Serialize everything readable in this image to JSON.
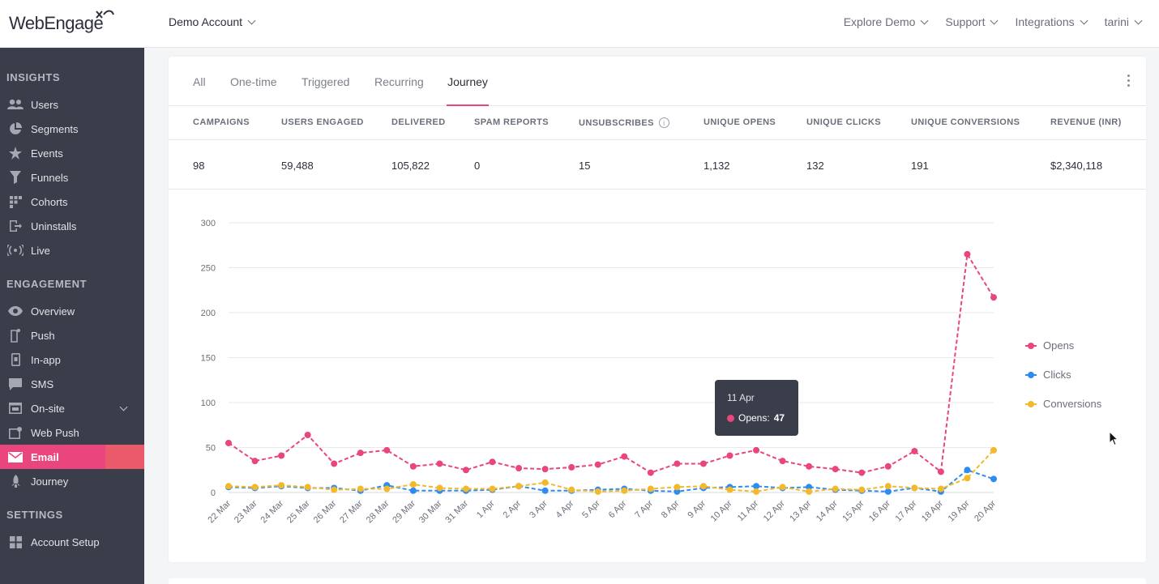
{
  "brand": {
    "logo_text": "WebEngage",
    "accent": "#e8467c"
  },
  "header": {
    "account": "Demo Account",
    "nav": [
      "Explore Demo",
      "Support",
      "Integrations",
      "tarini"
    ]
  },
  "sidebar": {
    "sections": [
      {
        "title": "INSIGHTS",
        "items": [
          {
            "label": "Users",
            "icon": "users-icon"
          },
          {
            "label": "Segments",
            "icon": "pie-icon"
          },
          {
            "label": "Events",
            "icon": "star-icon"
          },
          {
            "label": "Funnels",
            "icon": "funnel-icon"
          },
          {
            "label": "Cohorts",
            "icon": "grid-icon"
          },
          {
            "label": "Uninstalls",
            "icon": "uninstall-icon"
          },
          {
            "label": "Live",
            "icon": "broadcast-icon"
          }
        ]
      },
      {
        "title": "ENGAGEMENT",
        "items": [
          {
            "label": "Overview",
            "icon": "eye-icon"
          },
          {
            "label": "Push",
            "icon": "phone-icon"
          },
          {
            "label": "In-app",
            "icon": "inapp-icon"
          },
          {
            "label": "SMS",
            "icon": "chat-icon"
          },
          {
            "label": "On-site",
            "icon": "window-icon"
          },
          {
            "label": "Web Push",
            "icon": "webpush-icon"
          },
          {
            "label": "Email",
            "icon": "mail-icon"
          },
          {
            "label": "Journey",
            "icon": "rocket-icon"
          }
        ]
      },
      {
        "title": "SETTINGS",
        "items": [
          {
            "label": "Account Setup",
            "icon": "apps-icon"
          }
        ]
      }
    ],
    "active": "Email"
  },
  "tabs": [
    "All",
    "One-time",
    "Triggered",
    "Recurring",
    "Journey"
  ],
  "active_tab": "Journey",
  "stats": {
    "headers": [
      "CAMPAIGNS",
      "USERS ENGAGED",
      "DELIVERED",
      "SPAM REPORTS",
      "UNSUBSCRIBES",
      "UNIQUE OPENS",
      "UNIQUE CLICKS",
      "UNIQUE CONVERSIONS",
      "REVENUE (INR)"
    ],
    "values": [
      "98",
      "59,488",
      "105,822",
      "0",
      "15",
      "1,132",
      "132",
      "191",
      "$2,340,118"
    ]
  },
  "tooltip": {
    "date": "11 Apr",
    "label": "Opens:",
    "value": "47"
  },
  "chart_data": {
    "type": "line",
    "x": [
      "22 Mar",
      "23 Mar",
      "24 Mar",
      "25 Mar",
      "26 Mar",
      "27 Mar",
      "28 Mar",
      "29 Mar",
      "30 Mar",
      "31 Mar",
      "1 Apr",
      "2 Apr",
      "3 Apr",
      "4 Apr",
      "5 Apr",
      "6 Apr",
      "7 Apr",
      "8 Apr",
      "9 Apr",
      "10 Apr",
      "11 Apr",
      "12 Apr",
      "13 Apr",
      "14 Apr",
      "15 Apr",
      "16 Apr",
      "17 Apr",
      "18 Apr",
      "19 Apr",
      "20 Apr"
    ],
    "yticks": [
      0,
      50,
      100,
      150,
      200,
      250,
      300
    ],
    "ylim": [
      0,
      300
    ],
    "grid": true,
    "legend_position": "right",
    "series": [
      {
        "name": "Opens",
        "color": "#e8467c",
        "values": [
          55,
          35,
          41,
          64,
          32,
          44,
          47,
          29,
          32,
          25,
          34,
          27,
          26,
          28,
          31,
          40,
          22,
          32,
          32,
          41,
          47,
          35,
          29,
          26,
          22,
          29,
          46,
          23,
          265,
          217
        ]
      },
      {
        "name": "Clicks",
        "color": "#2d8cf0",
        "values": [
          6,
          5,
          7,
          5,
          5,
          2,
          8,
          2,
          2,
          2,
          3,
          7,
          2,
          2,
          3,
          4,
          2,
          1,
          5,
          6,
          7,
          5,
          6,
          3,
          2,
          1,
          5,
          1,
          25,
          15
        ]
      },
      {
        "name": "Conversions",
        "color": "#f2b92d",
        "values": [
          7,
          6,
          8,
          6,
          3,
          4,
          4,
          9,
          5,
          4,
          4,
          7,
          11,
          3,
          1,
          2,
          4,
          6,
          7,
          3,
          1,
          6,
          1,
          4,
          3,
          7,
          5,
          4,
          16,
          47
        ]
      }
    ]
  }
}
